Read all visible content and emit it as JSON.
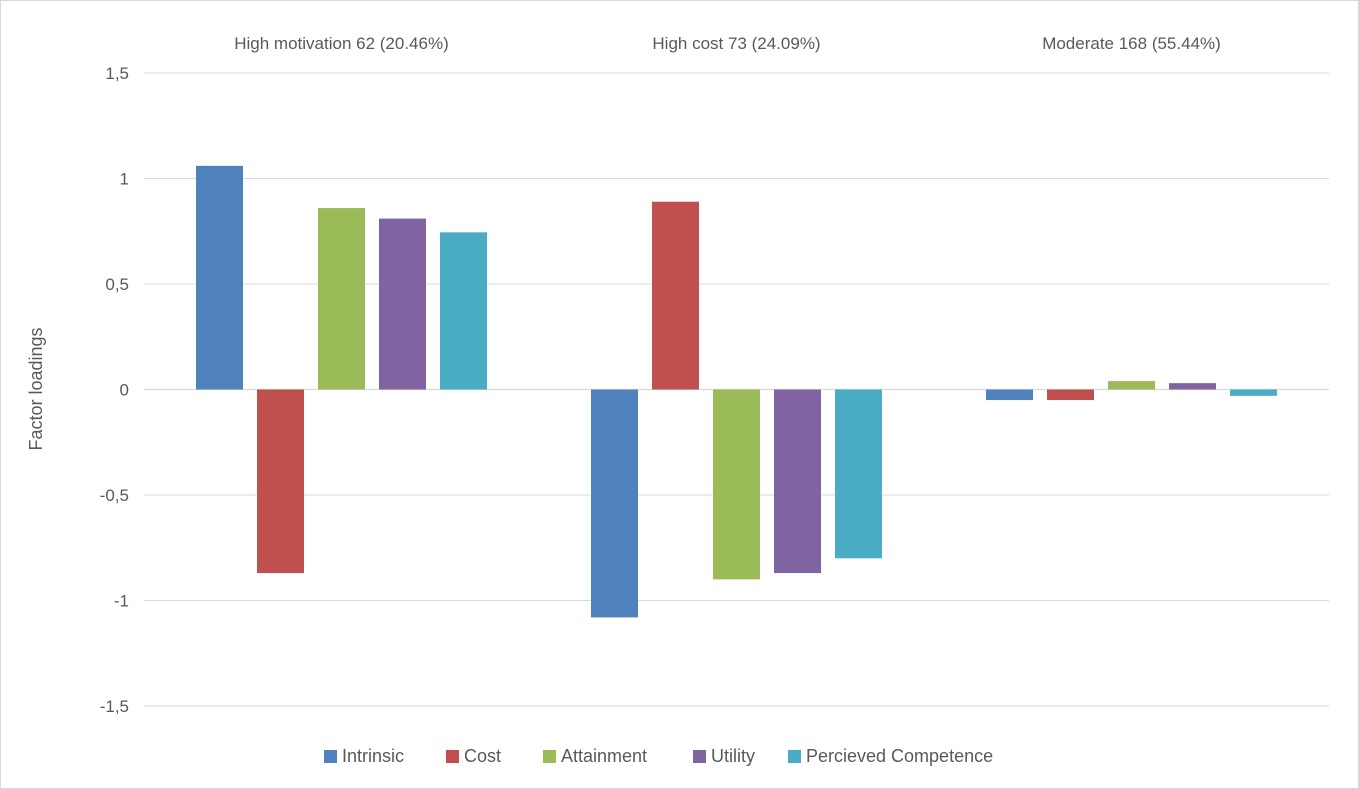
{
  "chart_data": {
    "type": "bar",
    "categories": [
      "High motivation 62 (20.46%)",
      "High cost 73 (24.09%)",
      "Moderate 168 (55.44%)"
    ],
    "series": [
      {
        "name": "Intrinsic",
        "color": "#4f81bd",
        "values": [
          1.06,
          -1.08,
          -0.05
        ]
      },
      {
        "name": "Cost",
        "color": "#c0504d",
        "values": [
          -0.87,
          0.89,
          -0.05
        ]
      },
      {
        "name": "Attainment",
        "color": "#9bbb59",
        "values": [
          0.86,
          -0.9,
          0.04
        ]
      },
      {
        "name": "Utility",
        "color": "#8064a2",
        "values": [
          0.81,
          -0.87,
          0.03
        ]
      },
      {
        "name": "Percieved Competence",
        "color": "#4bacc6",
        "values": [
          0.745,
          -0.8,
          -0.03
        ]
      }
    ],
    "ylabel": "Factor loadings",
    "ylim": [
      -1.5,
      1.5
    ],
    "yticks": [
      1.5,
      1,
      0.5,
      0,
      -0.5,
      -1,
      -1.5
    ],
    "ytick_labels": [
      "1,5",
      "1",
      "0,5",
      "0",
      "-0,5",
      "-1",
      "-1,5"
    ],
    "category_labels_position": "top",
    "grid": true,
    "legend_position": "bottom"
  }
}
